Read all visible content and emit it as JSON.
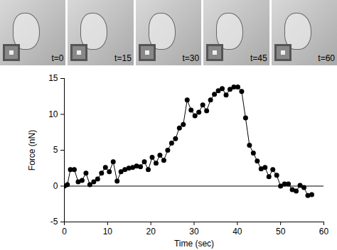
{
  "chart_data": {
    "type": "line",
    "panels": [
      "t=0",
      "t=15",
      "t=30",
      "t=45",
      "t=60"
    ],
    "x_label": "Time (sec)",
    "y_label": "Force (nN)",
    "x": [
      0,
      0.7,
      1.4,
      2.3,
      3.2,
      4.1,
      5.0,
      5.9,
      6.8,
      7.7,
      8.6,
      9.5,
      10.4,
      11.3,
      12.2,
      13.1,
      14.0,
      14.9,
      15.8,
      16.7,
      17.6,
      18.5,
      19.4,
      20.3,
      21.2,
      22.1,
      23.0,
      23.9,
      24.8,
      25.7,
      26.6,
      27.5,
      28.4,
      29.3,
      30.2,
      31.1,
      32.0,
      32.9,
      33.8,
      34.7,
      35.6,
      36.5,
      37.4,
      38.3,
      39.2,
      40.1,
      41.0,
      41.9,
      42.8,
      43.7,
      44.6,
      45.5,
      46.4,
      47.3,
      48.2,
      49.1,
      50.0,
      50.9,
      51.8,
      52.7,
      53.6,
      54.5,
      55.4,
      56.3,
      57.2
    ],
    "series": [
      {
        "name": "Force",
        "color": "#000000",
        "marker": "circle",
        "line_style": "solid",
        "values": [
          0,
          0.2,
          2.3,
          2.3,
          0.6,
          0.8,
          1.8,
          0.2,
          0.6,
          1.0,
          1.8,
          2.6,
          2.0,
          3.4,
          0.7,
          2.0,
          2.3,
          2.5,
          2.6,
          2.8,
          2.7,
          3.4,
          2.3,
          4.0,
          3.2,
          4.3,
          3.6,
          5.0,
          6.0,
          6.6,
          8.1,
          8.6,
          12.0,
          10.6,
          9.8,
          10.3,
          11.3,
          10.5,
          12.0,
          12.8,
          13.3,
          13.6,
          12.7,
          13.5,
          13.8,
          13.8,
          13.2,
          9.5,
          5.7,
          4.6,
          3.5,
          2.4,
          2.6,
          1.3,
          2.3,
          1.5,
          0.0,
          0.3,
          0.3,
          -0.5,
          -0.7,
          0.1,
          -0.2,
          -1.3,
          -1.2
        ]
      }
    ],
    "xlim": [
      0,
      60
    ],
    "xticks": [
      0,
      10,
      20,
      30,
      40,
      50,
      60
    ],
    "ylim": [
      -5,
      15
    ],
    "yticks": [
      -5,
      0,
      5,
      10,
      15
    ],
    "hline": 0,
    "grid": false
  }
}
